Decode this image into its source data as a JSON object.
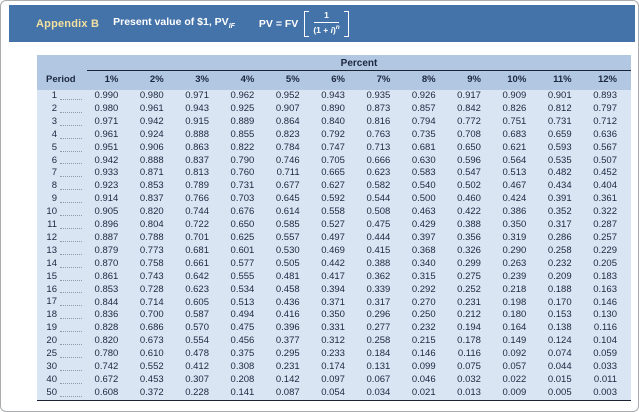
{
  "header": {
    "appendix_label": "Appendix B",
    "title": "Present value of $1, PV",
    "title_subscript": "IF",
    "formula": {
      "lhs": "PV = FV",
      "numerator": "1",
      "den_open": "(1 + ",
      "den_i": "i",
      "den_close": ")",
      "den_exp": "n"
    }
  },
  "table": {
    "group_header": "Percent",
    "period_header": "Period",
    "percent_headers": [
      "1%",
      "2%",
      "3%",
      "4%",
      "5%",
      "6%",
      "7%",
      "8%",
      "9%",
      "10%",
      "11%",
      "12%"
    ],
    "rows": [
      {
        "period": "1",
        "values": [
          "0.990",
          "0.980",
          "0.971",
          "0.962",
          "0.952",
          "0.943",
          "0.935",
          "0.926",
          "0.917",
          "0.909",
          "0.901",
          "0.893"
        ]
      },
      {
        "period": "2",
        "values": [
          "0.980",
          "0.961",
          "0.943",
          "0.925",
          "0.907",
          "0.890",
          "0.873",
          "0.857",
          "0.842",
          "0.826",
          "0.812",
          "0.797"
        ]
      },
      {
        "period": "3",
        "values": [
          "0.971",
          "0.942",
          "0.915",
          "0.889",
          "0.864",
          "0.840",
          "0.816",
          "0.794",
          "0.772",
          "0.751",
          "0.731",
          "0.712"
        ]
      },
      {
        "period": "4",
        "values": [
          "0.961",
          "0.924",
          "0.888",
          "0.855",
          "0.823",
          "0.792",
          "0.763",
          "0.735",
          "0.708",
          "0.683",
          "0.659",
          "0.636"
        ]
      },
      {
        "period": "5",
        "values": [
          "0.951",
          "0.906",
          "0.863",
          "0.822",
          "0.784",
          "0.747",
          "0.713",
          "0.681",
          "0.650",
          "0.621",
          "0.593",
          "0.567"
        ]
      },
      {
        "period": "6",
        "values": [
          "0.942",
          "0.888",
          "0.837",
          "0.790",
          "0.746",
          "0.705",
          "0.666",
          "0.630",
          "0.596",
          "0.564",
          "0.535",
          "0.507"
        ]
      },
      {
        "period": "7",
        "values": [
          "0.933",
          "0.871",
          "0.813",
          "0.760",
          "0.711",
          "0.665",
          "0.623",
          "0.583",
          "0.547",
          "0.513",
          "0.482",
          "0.452"
        ]
      },
      {
        "period": "8",
        "values": [
          "0.923",
          "0.853",
          "0.789",
          "0.731",
          "0.677",
          "0.627",
          "0.582",
          "0.540",
          "0.502",
          "0.467",
          "0.434",
          "0.404"
        ]
      },
      {
        "period": "9",
        "values": [
          "0.914",
          "0.837",
          "0.766",
          "0.703",
          "0.645",
          "0.592",
          "0.544",
          "0.500",
          "0.460",
          "0.424",
          "0.391",
          "0.361"
        ]
      },
      {
        "period": "10",
        "values": [
          "0.905",
          "0.820",
          "0.744",
          "0.676",
          "0.614",
          "0.558",
          "0.508",
          "0.463",
          "0.422",
          "0.386",
          "0.352",
          "0.322"
        ]
      },
      {
        "period": "11",
        "values": [
          "0.896",
          "0.804",
          "0.722",
          "0.650",
          "0.585",
          "0.527",
          "0.475",
          "0.429",
          "0.388",
          "0.350",
          "0.317",
          "0.287"
        ]
      },
      {
        "period": "12",
        "values": [
          "0.887",
          "0.788",
          "0.701",
          "0.625",
          "0.557",
          "0.497",
          "0.444",
          "0.397",
          "0.356",
          "0.319",
          "0.286",
          "0.257"
        ]
      },
      {
        "period": "13",
        "values": [
          "0.879",
          "0.773",
          "0.681",
          "0.601",
          "0.530",
          "0.469",
          "0.415",
          "0.368",
          "0.326",
          "0.290",
          "0.258",
          "0.229"
        ]
      },
      {
        "period": "14",
        "values": [
          "0.870",
          "0.758",
          "0.661",
          "0.577",
          "0.505",
          "0.442",
          "0.388",
          "0.340",
          "0.299",
          "0.263",
          "0.232",
          "0.205"
        ]
      },
      {
        "period": "15",
        "values": [
          "0.861",
          "0.743",
          "0.642",
          "0.555",
          "0.481",
          "0.417",
          "0.362",
          "0.315",
          "0.275",
          "0.239",
          "0.209",
          "0.183"
        ]
      },
      {
        "period": "16",
        "values": [
          "0.853",
          "0.728",
          "0.623",
          "0.534",
          "0.458",
          "0.394",
          "0.339",
          "0.292",
          "0.252",
          "0.218",
          "0.188",
          "0.163"
        ]
      },
      {
        "period": "17",
        "values": [
          "0.844",
          "0.714",
          "0.605",
          "0.513",
          "0.436",
          "0.371",
          "0.317",
          "0.270",
          "0.231",
          "0.198",
          "0.170",
          "0.146"
        ]
      },
      {
        "period": "18",
        "values": [
          "0.836",
          "0.700",
          "0.587",
          "0.494",
          "0.416",
          "0.350",
          "0.296",
          "0.250",
          "0.212",
          "0.180",
          "0.153",
          "0.130"
        ]
      },
      {
        "period": "19",
        "values": [
          "0.828",
          "0.686",
          "0.570",
          "0.475",
          "0.396",
          "0.331",
          "0.277",
          "0.232",
          "0.194",
          "0.164",
          "0.138",
          "0.116"
        ]
      },
      {
        "period": "20",
        "values": [
          "0.820",
          "0.673",
          "0.554",
          "0.456",
          "0.377",
          "0.312",
          "0.258",
          "0.215",
          "0.178",
          "0.149",
          "0.124",
          "0.104"
        ]
      },
      {
        "period": "25",
        "values": [
          "0.780",
          "0.610",
          "0.478",
          "0.375",
          "0.295",
          "0.233",
          "0.184",
          "0.146",
          "0.116",
          "0.092",
          "0.074",
          "0.059"
        ]
      },
      {
        "period": "30",
        "values": [
          "0.742",
          "0.552",
          "0.412",
          "0.308",
          "0.231",
          "0.174",
          "0.131",
          "0.099",
          "0.075",
          "0.057",
          "0.044",
          "0.033"
        ]
      },
      {
        "period": "40",
        "values": [
          "0.672",
          "0.453",
          "0.307",
          "0.208",
          "0.142",
          "0.097",
          "0.067",
          "0.046",
          "0.032",
          "0.022",
          "0.015",
          "0.011"
        ]
      },
      {
        "period": "50",
        "values": [
          "0.608",
          "0.372",
          "0.228",
          "0.141",
          "0.087",
          "0.054",
          "0.034",
          "0.021",
          "0.013",
          "0.009",
          "0.005",
          "0.003"
        ]
      }
    ]
  },
  "colors": {
    "title_bar_blue": "#4473a9",
    "appendix_label_yellow": "#f2e0a0",
    "table_header_blue": "#b2c8e2",
    "table_body_blue": "#d9e5f2",
    "text_navy": "#1c2740",
    "rule_dark": "#1a2435"
  }
}
